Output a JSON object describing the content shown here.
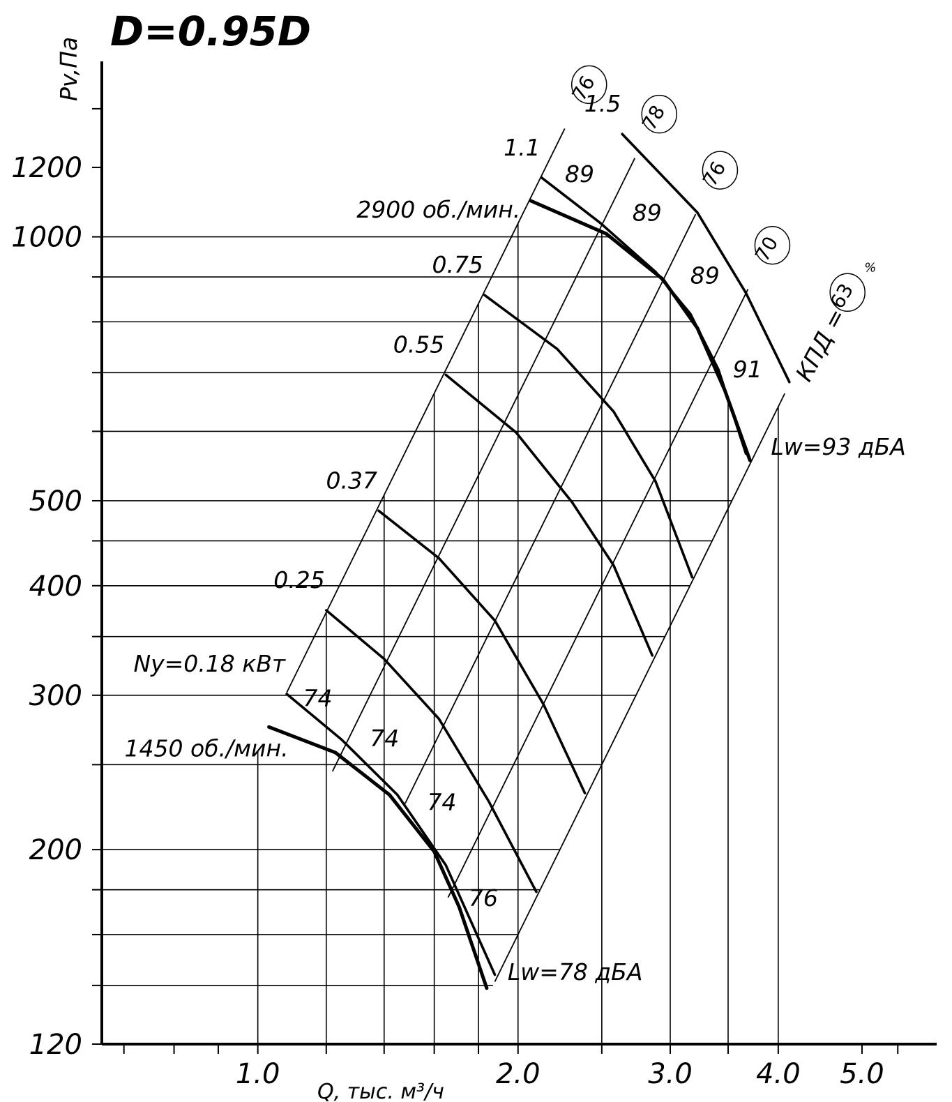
{
  "chart_data": {
    "type": "line",
    "title": "D=0.95D",
    "y_label": "Pv,Па",
    "x_label": "Q, тыс. м³/ч",
    "log_x": true,
    "log_y": true,
    "xlim": [
      0.66,
      6.1
    ],
    "ylim": [
      120,
      1600
    ],
    "xticks": [
      {
        "value": 1,
        "label": "1.0"
      },
      {
        "value": 2,
        "label": "2.0"
      },
      {
        "value": 3,
        "label": "3.0"
      },
      {
        "value": 4,
        "label": "4.0"
      },
      {
        "value": 5,
        "label": "5.0"
      }
    ],
    "x_minor_ticks": [
      0.7,
      0.8,
      0.9,
      1.2,
      1.4,
      1.6,
      1.8,
      2.5,
      3.5,
      5.5
    ],
    "yticks": [
      120,
      200,
      300,
      400,
      500,
      1000,
      1200
    ],
    "y_minor_ticks": [
      140,
      160,
      180,
      250,
      350,
      450,
      600,
      700,
      800,
      900,
      1400
    ],
    "x_grid": [
      1,
      1.2,
      1.4,
      1.6,
      1.8,
      2,
      2.5,
      3,
      3.5,
      4
    ],
    "y_grid": [
      140,
      160,
      180,
      200,
      250,
      300,
      350,
      400,
      450,
      500,
      600,
      700,
      800,
      900,
      1000
    ],
    "color": "#000000",
    "speed_series": [
      {
        "name": "2900 об./мин.",
        "end_label": "Lw=93 дБА",
        "x": [
          2.07,
          2.53,
          2.94,
          3.225,
          3.47,
          3.71
        ],
        "values": [
          1099,
          1008,
          895,
          787,
          668,
          556
        ]
      },
      {
        "name": "1450 об./мин.",
        "end_label": "Lw=78 дБА",
        "x": [
          1.03,
          1.23,
          1.42,
          1.6,
          1.71,
          1.84
        ],
        "values": [
          276,
          258,
          231,
          199,
          172,
          139
        ]
      }
    ],
    "series": [
      {
        "name": "Ny=0.18 кВт",
        "x": [
          1.08,
          1.25,
          1.45,
          1.65,
          1.88
        ],
        "values": [
          301,
          267,
          231,
          192,
          144
        ]
      },
      {
        "name": "0.25",
        "x": [
          1.2,
          1.4,
          1.62,
          1.85,
          2.1
        ],
        "values": [
          375,
          330,
          282,
          227,
          179
        ]
      },
      {
        "name": "0.37",
        "x": [
          1.38,
          1.62,
          1.88,
          2.14,
          2.39
        ],
        "values": [
          487,
          430,
          365,
          293,
          232
        ]
      },
      {
        "name": "0.55",
        "x": [
          1.65,
          1.99,
          2.31,
          2.58,
          2.86
        ],
        "values": [
          696,
          598,
          498,
          422,
          333
        ]
      },
      {
        "name": "0.75",
        "x": [
          1.83,
          2.22,
          2.58,
          2.885,
          3.18
        ],
        "values": [
          858,
          745,
          632,
          526,
          409
        ]
      },
      {
        "name": "1.1",
        "x": [
          2.13,
          2.49,
          2.885,
          3.165,
          3.41,
          3.67
        ],
        "values": [
          1168,
          1037,
          912,
          817,
          706,
          566
        ]
      },
      {
        "name": "1.5",
        "x": [
          2.64,
          3.225,
          3.67,
          4.12
        ],
        "values": [
          1310,
          1066,
          863,
          683
        ]
      }
    ],
    "system_lines": [
      {
        "k": 259,
        "q_range": [
          1.08,
          2.265
        ],
        "efficiency": "76"
      },
      {
        "k": 165,
        "q_range": [
          1.22,
          2.73
        ],
        "efficiency": "78"
      },
      {
        "k": 103,
        "q_range": [
          1.48,
          3.21
        ],
        "efficiency": "76"
      },
      {
        "k": 64,
        "q_range": [
          1.66,
          3.69
        ],
        "efficiency": "70"
      },
      {
        "k": 40,
        "q_range": [
          1.88,
          4.07
        ],
        "efficiency": "63"
      }
    ],
    "efficiency_prefix": "КПД =",
    "efficiency_unit": "%",
    "upper_labels": [
      "89",
      "89",
      "89",
      "91"
    ],
    "lower_labels": [
      "74",
      "74",
      "74",
      "76"
    ]
  }
}
